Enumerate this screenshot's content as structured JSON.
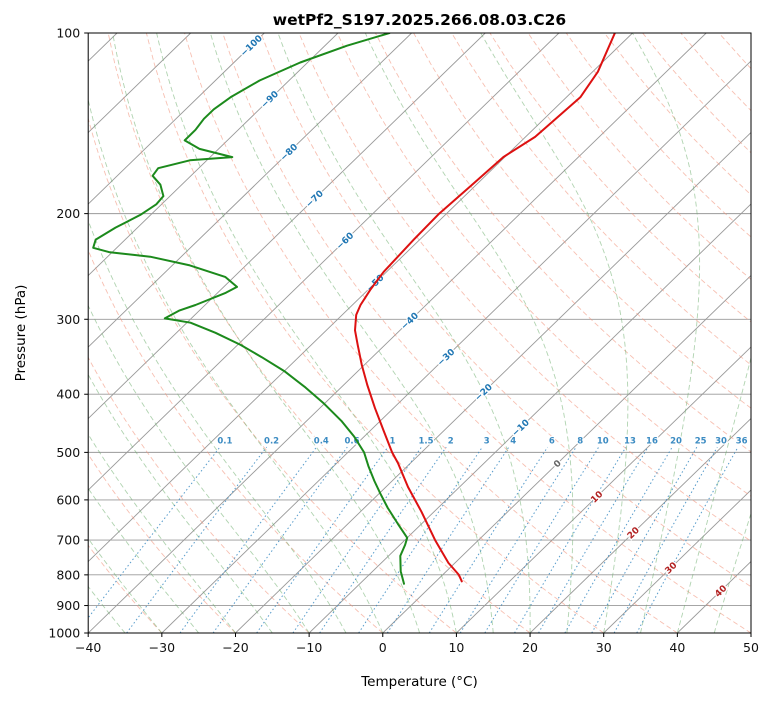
{
  "title": "wetPf2_S197.2025.266.08.03.C26",
  "chart_data": {
    "type": "line",
    "variant": "skew-t-log-p",
    "title": "wetPf2_S197.2025.266.08.03.C26",
    "xlabel": "Temperature (°C)",
    "ylabel": "Pressure (hPa)",
    "xlim": [
      -40,
      50
    ],
    "plim": [
      100,
      1000
    ],
    "x_ticks": [
      -40,
      -30,
      -20,
      -10,
      0,
      10,
      20,
      30,
      40,
      50
    ],
    "pressure_ticks": [
      100,
      200,
      300,
      400,
      500,
      600,
      700,
      800,
      900,
      1000
    ],
    "grid_on": true,
    "legend": "none",
    "isotherm_labels": {
      "values": [
        -100,
        -90,
        -80,
        -70,
        -60,
        -50,
        -40,
        -30,
        -20,
        -10,
        0,
        10,
        20,
        30,
        40
      ],
      "cold_color": "#2077b4",
      "zero_color": "#666666",
      "warm_color": "#b22222"
    },
    "mixing_ratio_labels": [
      0.1,
      0.2,
      0.4,
      0.6,
      1,
      1.5,
      2,
      3,
      4,
      6,
      8,
      10,
      13,
      16,
      20,
      25,
      30,
      36
    ],
    "colors": {
      "grid_line": "#999999",
      "dry_adiabat": "#f2967f",
      "moist_adiabat": "#6fae6f",
      "mixing_ratio": "#3b8bc2",
      "temperature": "#dd1111",
      "dewpoint": "#1c8a1c",
      "spine": "#000000"
    },
    "series": [
      {
        "name": "temperature",
        "color": "#dd1111",
        "points": [
          [
            820,
            3.5
          ],
          [
            800,
            2.2
          ],
          [
            764,
            -0.9
          ],
          [
            700,
            -5.9
          ],
          [
            628,
            -11.7
          ],
          [
            571,
            -17.0
          ],
          [
            521,
            -21.7
          ],
          [
            500,
            -24.0
          ],
          [
            459,
            -28.3
          ],
          [
            422,
            -32.5
          ],
          [
            386,
            -36.8
          ],
          [
            357,
            -40.4
          ],
          [
            331,
            -43.7
          ],
          [
            313,
            -46.1
          ],
          [
            295,
            -48.1
          ],
          [
            284,
            -48.9
          ],
          [
            268,
            -49.7
          ],
          [
            250,
            -50.4
          ],
          [
            221,
            -50.8
          ],
          [
            200,
            -51.0
          ],
          [
            180,
            -50.6
          ],
          [
            161,
            -50.2
          ],
          [
            149,
            -48.7
          ],
          [
            128,
            -48.1
          ],
          [
            116,
            -49.3
          ],
          [
            110,
            -50.4
          ],
          [
            100,
            -52.4
          ]
        ]
      },
      {
        "name": "dewpoint",
        "color": "#1c8a1c",
        "points": [
          [
            828,
            -4.0
          ],
          [
            789,
            -6.2
          ],
          [
            744,
            -8.4
          ],
          [
            713,
            -9.3
          ],
          [
            694,
            -10.0
          ],
          [
            658,
            -13.2
          ],
          [
            619,
            -16.8
          ],
          [
            586,
            -19.8
          ],
          [
            558,
            -22.4
          ],
          [
            527,
            -25.3
          ],
          [
            500,
            -27.8
          ],
          [
            471,
            -31.3
          ],
          [
            443,
            -35.3
          ],
          [
            415,
            -40.0
          ],
          [
            390,
            -44.8
          ],
          [
            366,
            -50.0
          ],
          [
            347,
            -55.0
          ],
          [
            331,
            -59.6
          ],
          [
            316,
            -64.7
          ],
          [
            304,
            -69.5
          ],
          [
            299,
            -73.6
          ],
          [
            290,
            -72.7
          ],
          [
            284,
            -71.3
          ],
          [
            271,
            -68.9
          ],
          [
            265,
            -68.2
          ],
          [
            255,
            -71.2
          ],
          [
            244,
            -77.6
          ],
          [
            236,
            -84.2
          ],
          [
            232,
            -90.3
          ],
          [
            228,
            -93.2
          ],
          [
            221,
            -94.0
          ],
          [
            211,
            -93.0
          ],
          [
            201,
            -91.4
          ],
          [
            193,
            -90.7
          ],
          [
            187,
            -90.9
          ],
          [
            179,
            -92.9
          ],
          [
            173,
            -95.2
          ],
          [
            168,
            -95.5
          ],
          [
            163,
            -92.3
          ],
          [
            161,
            -87.0
          ],
          [
            156,
            -92.6
          ],
          [
            151,
            -95.8
          ],
          [
            145,
            -95.8
          ],
          [
            139,
            -96.2
          ],
          [
            134,
            -96.2
          ],
          [
            128,
            -95.6
          ],
          [
            120,
            -94.0
          ],
          [
            112,
            -91.0
          ],
          [
            105,
            -87.0
          ],
          [
            100,
            -83.0
          ]
        ]
      }
    ]
  }
}
